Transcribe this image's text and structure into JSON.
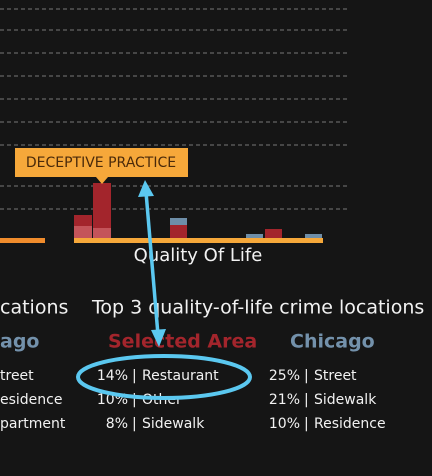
{
  "tooltip": "DECEPTIVE PRACTICE",
  "chart_label": "Quality Of Life",
  "left_heading": "cations",
  "heading": "Top 3 quality-of-life crime locations",
  "columns": [
    {
      "title": "ago",
      "rows": [
        "treet",
        "esidence",
        "partment"
      ]
    },
    {
      "title": "Selected Area",
      "rows": [
        {
          "pct": "14%",
          "location": "Restaurant"
        },
        {
          "pct": "10%",
          "location": "Other"
        },
        {
          "pct": "8%",
          "location": "Sidewalk"
        }
      ]
    },
    {
      "title": "Chicago",
      "rows": [
        {
          "pct": "25%",
          "location": "Street"
        },
        {
          "pct": "21%",
          "location": "Sidewalk"
        },
        {
          "pct": "10%",
          "location": "Residence"
        }
      ]
    }
  ]
}
